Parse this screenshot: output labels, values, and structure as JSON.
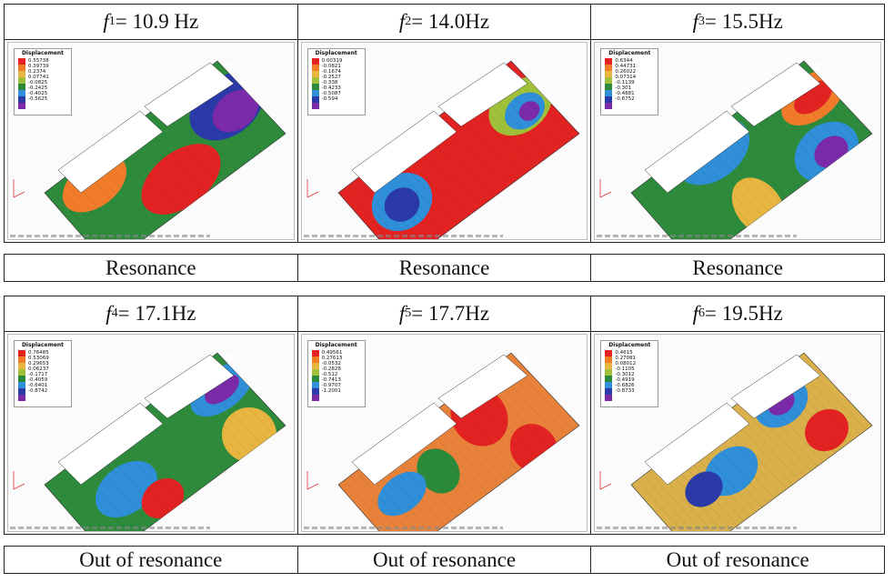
{
  "modes": [
    {
      "sym": "f",
      "sub": "1",
      "text": " = 10.9 Hz",
      "status": "Resonance",
      "legend_title": "Displacement",
      "legend_values": [
        "0.55738",
        "0.39739",
        "0.2374",
        "0.07741",
        "-0.0825",
        "-0.2425",
        "-0.4025",
        "-0.5625"
      ]
    },
    {
      "sym": "f",
      "sub": "2",
      "text": " = 14.0Hz",
      "status": "Resonance",
      "legend_title": "Displacement",
      "legend_values": [
        "0.00319",
        "-0.0821",
        "-0.1674",
        "-0.2527",
        "-0.338",
        "-0.4233",
        "-0.5087",
        "-0.594"
      ]
    },
    {
      "sym": "f",
      "sub": "3",
      "text": " = 15.5Hz",
      "status": "Resonance",
      "legend_title": "Displacement",
      "legend_values": [
        "0.6344",
        "0.44731",
        "0.26022",
        "0.07314",
        "-0.1139",
        "-0.301",
        "-0.4881",
        "-0.6752"
      ]
    },
    {
      "sym": "f",
      "sub": "4",
      "text": " = 17.1Hz",
      "status": "Out of resonance",
      "legend_title": "Displacement",
      "legend_values": [
        "0.76485",
        "0.53069",
        "0.29653",
        "0.06237",
        "-0.1717",
        "-0.4059",
        "-0.6401",
        "-0.8742"
      ]
    },
    {
      "sym": "f",
      "sub": "5",
      "text": " = 17.7Hz",
      "status": "Out of resonance",
      "legend_title": "Displacement",
      "legend_values": [
        "0.49561",
        "0.27613",
        "-0.0532",
        "-0.2828",
        "-0.512",
        "-0.7413",
        "-0.9707",
        "-1.2001"
      ]
    },
    {
      "sym": "f",
      "sub": "6",
      "text": " = 19.5Hz",
      "status": "Out of resonance",
      "legend_title": "Displacement",
      "legend_values": [
        "0.4615",
        "0.27081",
        "0.08012",
        "-0.1105",
        "-0.3012",
        "-0.4919",
        "-0.6826",
        "-0.8733"
      ]
    }
  ],
  "colors": {
    "scale": [
      "#e32222",
      "#f07c2a",
      "#e8b640",
      "#9fc13a",
      "#2b8a3a",
      "#2f8fd8",
      "#2a3aa8",
      "#7b2aa8"
    ],
    "plate": [
      "#2e8b3c",
      "#e32222",
      "#2e8b3c",
      "#2e8b3c",
      "#e8823a",
      "#d9b04a"
    ]
  }
}
